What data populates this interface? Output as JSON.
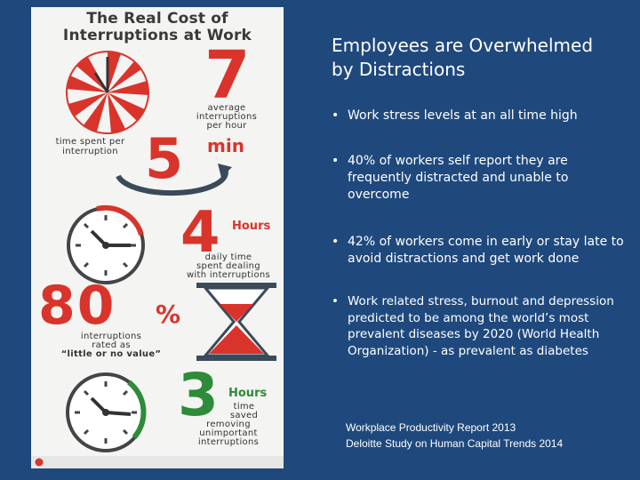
{
  "infographic": {
    "title_line1": "The Real Cost of",
    "title_line2": "Interruptions at Work",
    "stat1": {
      "number": "7",
      "label_line1": "average",
      "label_line2": "interruptions",
      "label_line3": "per hour"
    },
    "stat2": {
      "label_line1": "time spent per",
      "label_line2": "interruption",
      "number": "5",
      "unit": "min"
    },
    "stat3": {
      "number": "4",
      "unit": "Hours",
      "label_line1": "daily time",
      "label_line2": "spent dealing",
      "label_line3": "with interruptions"
    },
    "stat4": {
      "number": "80",
      "unit": "%",
      "label_line1": "interruptions",
      "label_line2": "rated as",
      "label_line3": "“little or no value”"
    },
    "stat5": {
      "number": "3",
      "unit": "Hours",
      "label_line1": "time",
      "label_line2": "saved",
      "label_line3": "removing",
      "label_line4": "unimportant",
      "label_line5": "interruptions"
    },
    "colors": {
      "accent_red": "#d9342b",
      "accent_green": "#2e8b3a",
      "panel_bg": "#f4f4f2"
    },
    "icons": [
      "clock-icon",
      "circular-arrow-icon",
      "hourglass-icon"
    ]
  },
  "heading": "Employees are Overwhelmed by Distractions",
  "bullets": [
    "Work stress levels at an all time high",
    "40% of workers self report they are frequently distracted and unable to overcome",
    "42% of workers come in early or stay late to avoid distractions and get work done",
    "Work related stress, burnout and depression predicted to be among the world’s most prevalent diseases by 2020  (World Health Organization)  - as prevalent as diabetes"
  ],
  "bullet_symbol": "•",
  "references": [
    "Workplace Productivity Report 2013",
    "Deloitte Study on Human Capital Trends 2014"
  ],
  "background_color": "#1f497d"
}
